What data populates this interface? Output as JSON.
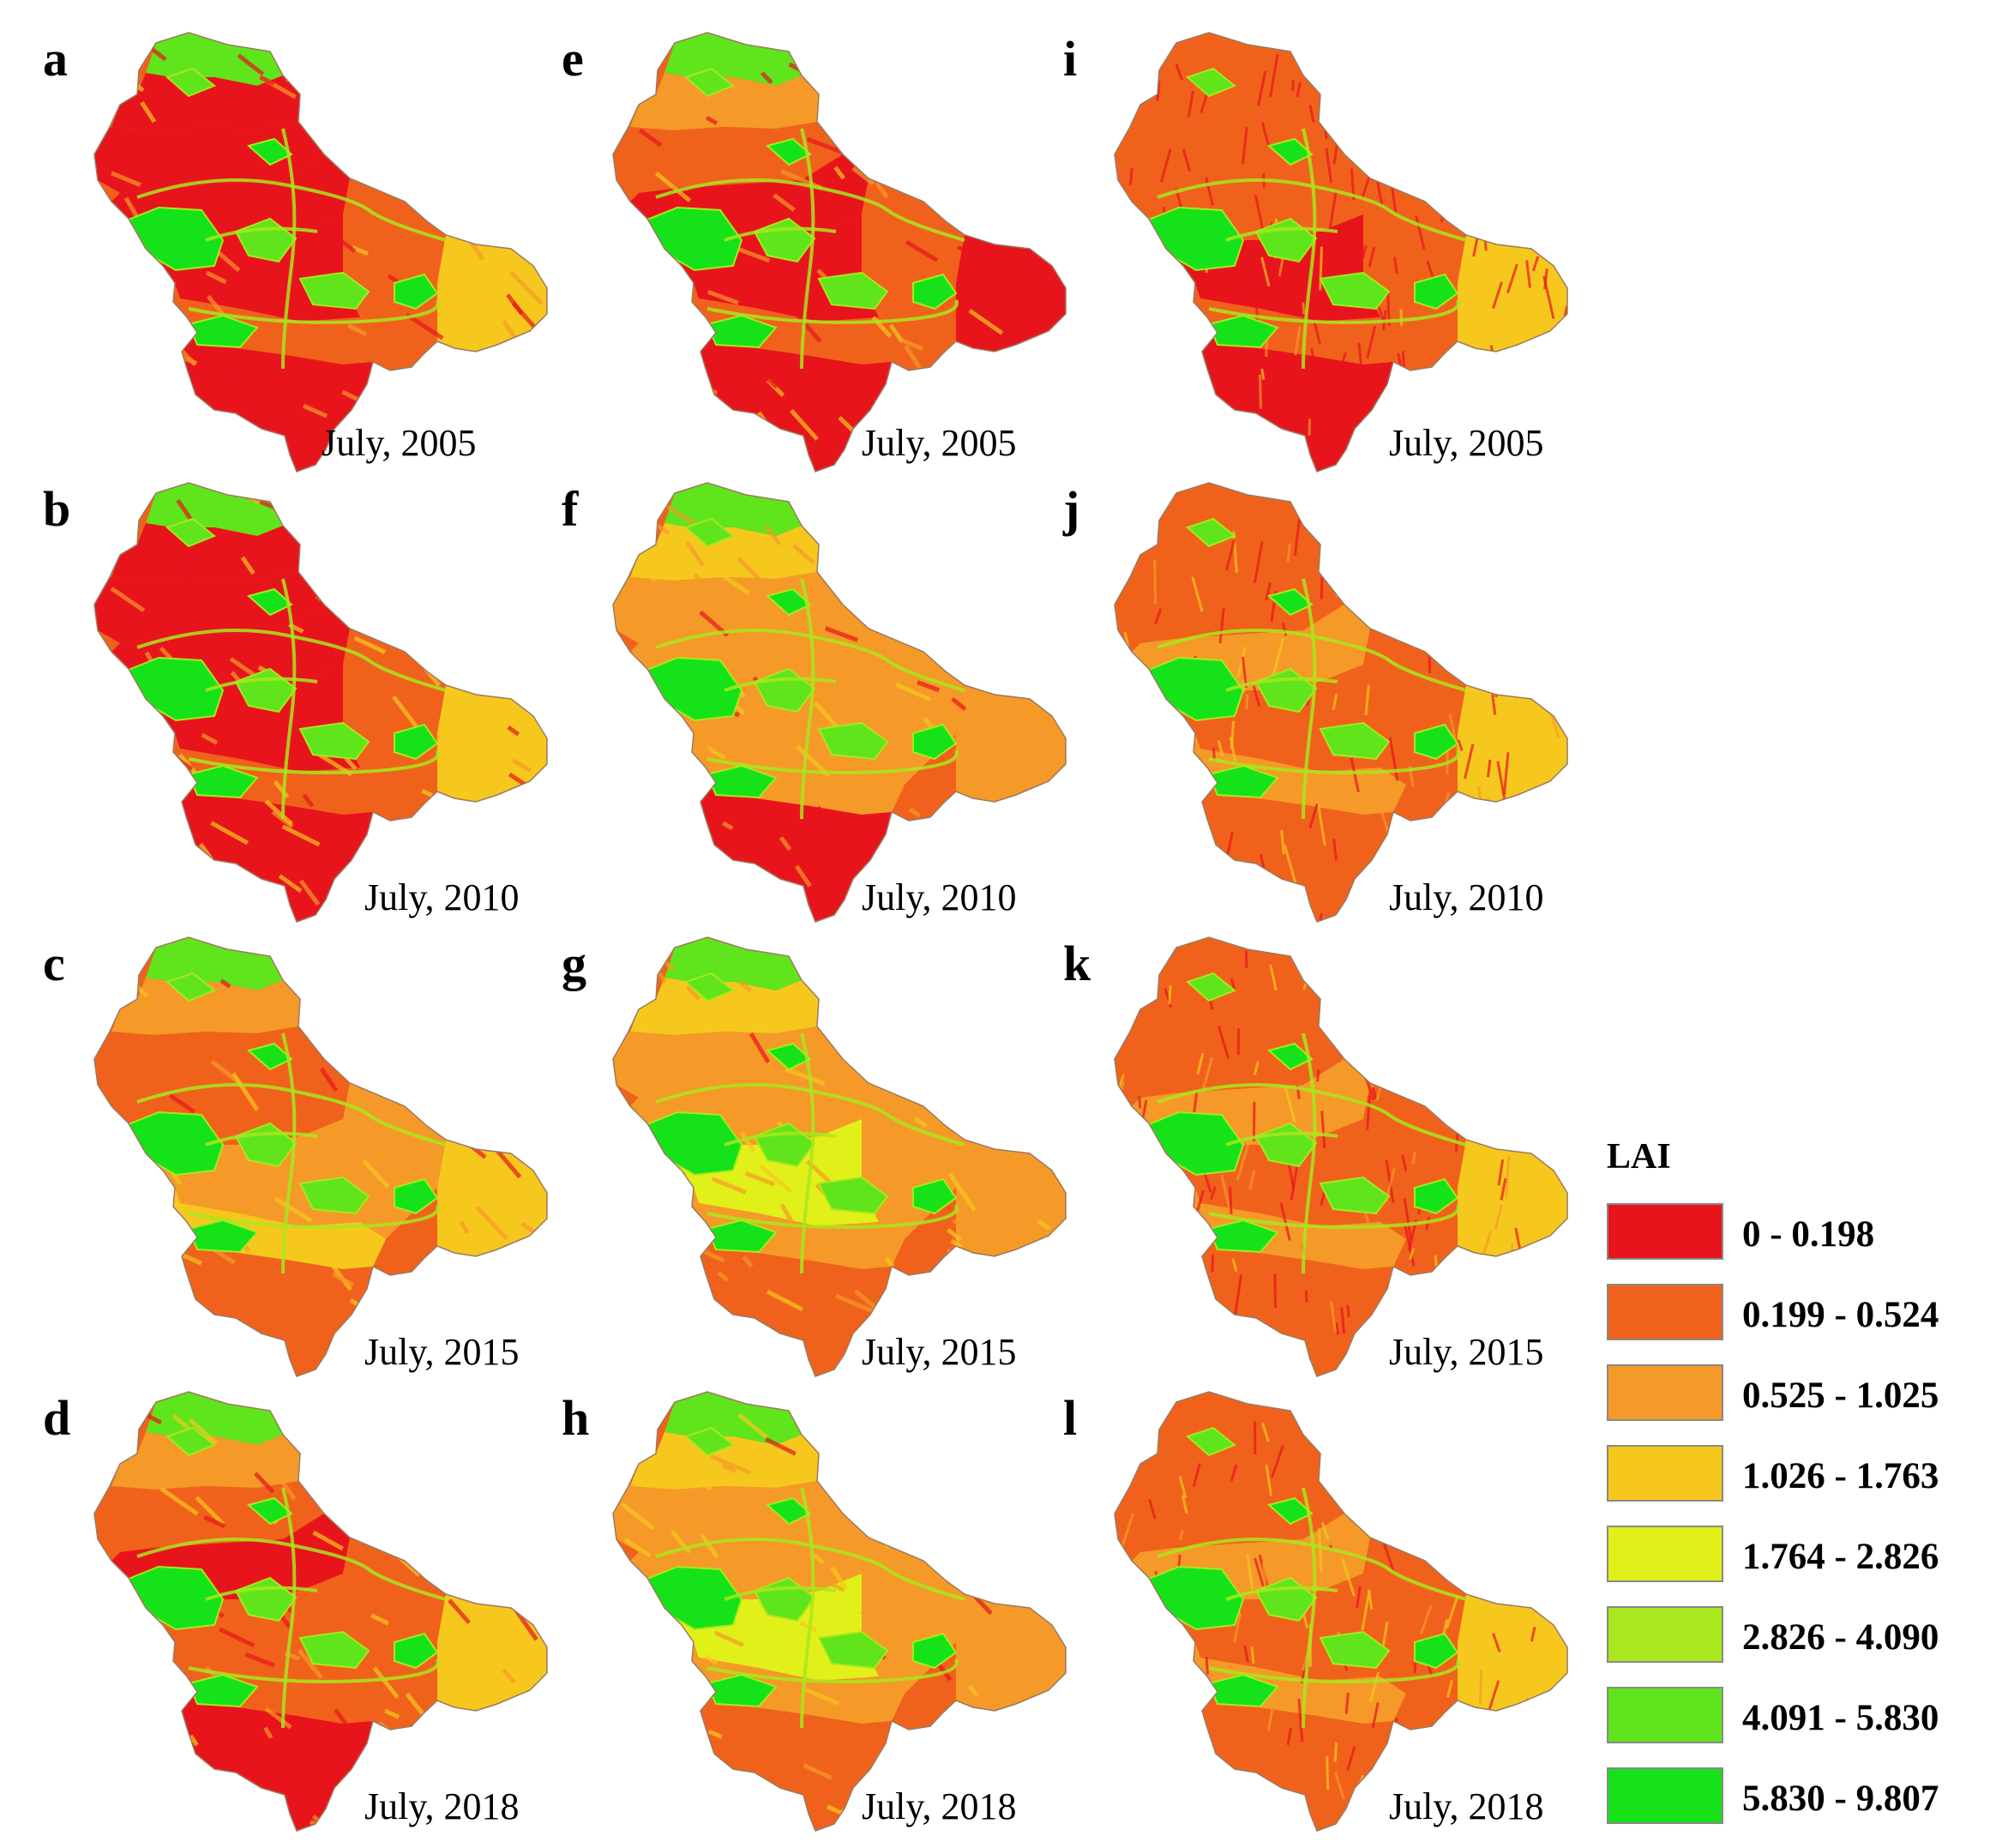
{
  "panels": [
    {
      "label": "a",
      "date": "July, 2005",
      "style": "A",
      "red": 0.78
    },
    {
      "label": "b",
      "date": "July, 2010",
      "style": "A",
      "red": 0.62
    },
    {
      "label": "c",
      "date": "July, 2015",
      "style": "A",
      "red": 0.35
    },
    {
      "label": "d",
      "date": "July, 2018",
      "style": "A",
      "red": 0.48
    },
    {
      "label": "e",
      "date": "July, 2005",
      "style": "B",
      "red": 0.7
    },
    {
      "label": "f",
      "date": "July, 2010",
      "style": "B",
      "red": 0.3
    },
    {
      "label": "g",
      "date": "July, 2015",
      "style": "B",
      "red": 0.12
    },
    {
      "label": "h",
      "date": "July, 2018",
      "style": "B",
      "red": 0.14
    },
    {
      "label": "i",
      "date": "July, 2005",
      "style": "C",
      "red": 0.85
    },
    {
      "label": "j",
      "date": "July, 2010",
      "style": "C",
      "red": 0.55
    },
    {
      "label": "k",
      "date": "July, 2015",
      "style": "C",
      "red": 0.5
    },
    {
      "label": "l",
      "date": "July, 2018",
      "style": "C",
      "red": 0.45
    }
  ],
  "legend": {
    "title": "LAI",
    "classes": [
      {
        "label": "0 - 0.198",
        "color": "#e8141c"
      },
      {
        "label": "0.199 - 0.524",
        "color": "#f0621c"
      },
      {
        "label": "0.525 - 1.025",
        "color": "#f59a28"
      },
      {
        "label": "1.026 - 1.763",
        "color": "#f6c81e"
      },
      {
        "label": "1.764 - 2.826",
        "color": "#e2f01a"
      },
      {
        "label": "2.826 - 4.090",
        "color": "#a8e81c"
      },
      {
        "label": "4.091 - 5.830",
        "color": "#60e41c"
      },
      {
        "label": "5.830 - 9.807",
        "color": "#16e21a"
      }
    ]
  }
}
